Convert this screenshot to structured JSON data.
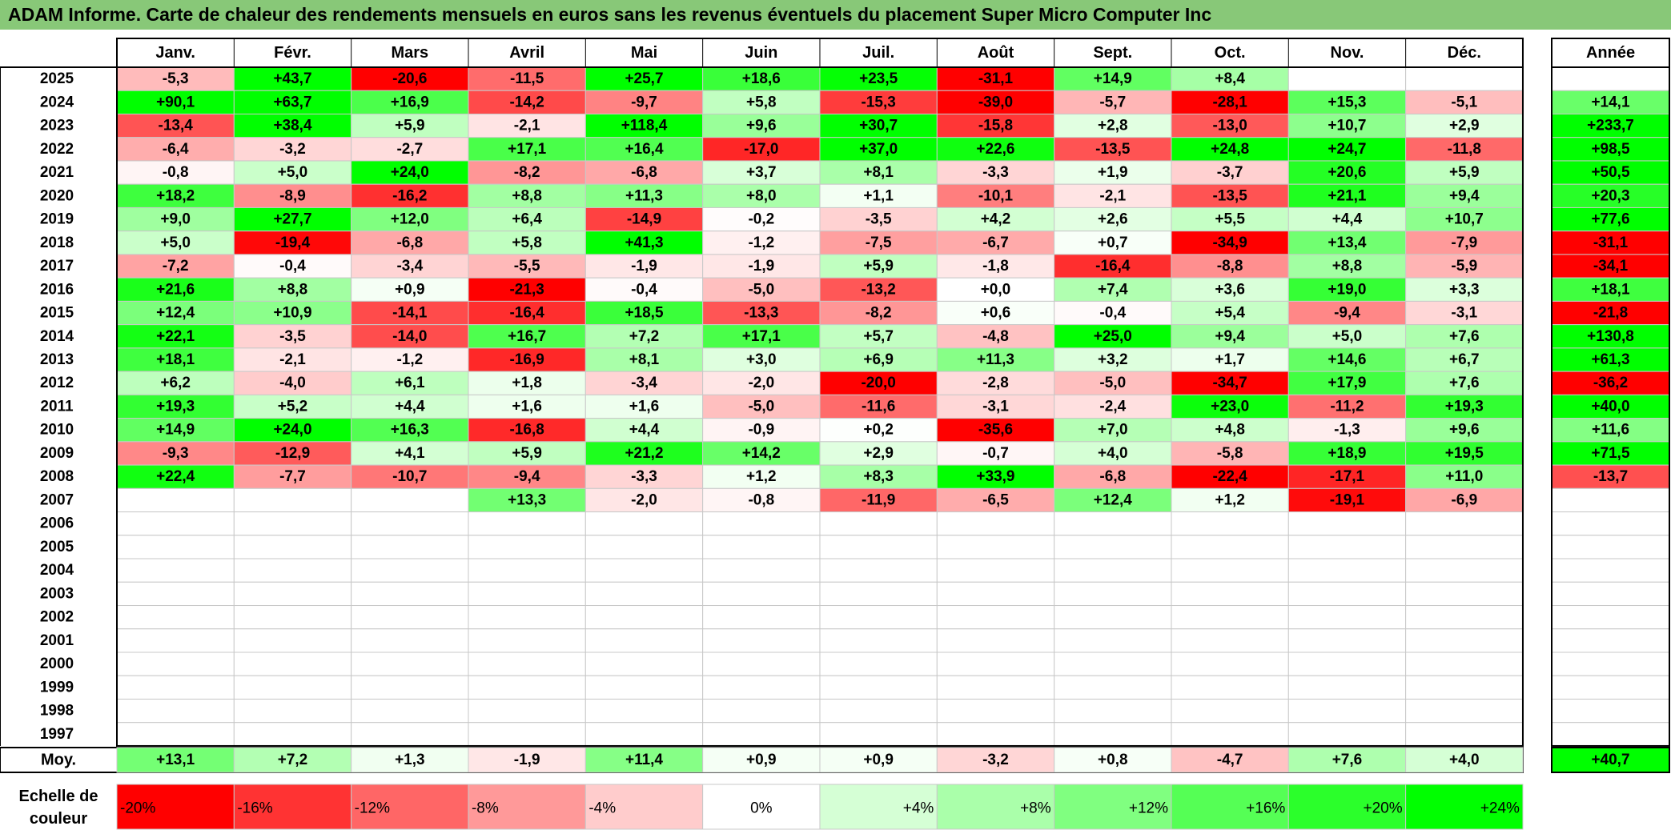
{
  "title": "ADAM Informe. Carte de chaleur des rendements mensuels en euros sans les revenus éventuels du placement Super Micro Computer Inc",
  "chart_data": {
    "type": "heatmap",
    "title": "ADAM Informe. Carte de chaleur des rendements mensuels en euros sans les revenus éventuels du placement Super Micro Computer Inc",
    "months": [
      "Janv.",
      "Févr.",
      "Mars",
      "Avril",
      "Mai",
      "Juin",
      "Juil.",
      "Août",
      "Sept.",
      "Oct.",
      "Nov.",
      "Déc."
    ],
    "year_column_label": "Année",
    "years": [
      "2025",
      "2024",
      "2023",
      "2022",
      "2021",
      "2020",
      "2019",
      "2018",
      "2017",
      "2016",
      "2015",
      "2014",
      "2013",
      "2012",
      "2011",
      "2010",
      "2009",
      "2008",
      "2007",
      "2006",
      "2005",
      "2004",
      "2003",
      "2002",
      "2001",
      "2000",
      "1999",
      "1998",
      "1997"
    ],
    "values": [
      [
        "-5,3",
        "+43,7",
        "-20,6",
        "-11,5",
        "+25,7",
        "+18,6",
        "+23,5",
        "-31,1",
        "+14,9",
        "+8,4",
        "",
        ""
      ],
      [
        "+90,1",
        "+63,7",
        "+16,9",
        "-14,2",
        "-9,7",
        "+5,8",
        "-15,3",
        "-39,0",
        "-5,7",
        "-28,1",
        "+15,3",
        "-5,1"
      ],
      [
        "-13,4",
        "+38,4",
        "+5,9",
        "-2,1",
        "+118,4",
        "+9,6",
        "+30,7",
        "-15,8",
        "+2,8",
        "-13,0",
        "+10,7",
        "+2,9"
      ],
      [
        "-6,4",
        "-3,2",
        "-2,7",
        "+17,1",
        "+16,4",
        "-17,0",
        "+37,0",
        "+22,6",
        "-13,5",
        "+24,8",
        "+24,7",
        "-11,8"
      ],
      [
        "-0,8",
        "+5,0",
        "+24,0",
        "-8,2",
        "-6,8",
        "+3,7",
        "+8,1",
        "-3,3",
        "+1,9",
        "-3,7",
        "+20,6",
        "+5,9"
      ],
      [
        "+18,2",
        "-8,9",
        "-16,2",
        "+8,8",
        "+11,3",
        "+8,0",
        "+1,1",
        "-10,1",
        "-2,1",
        "-13,5",
        "+21,1",
        "+9,4"
      ],
      [
        "+9,0",
        "+27,7",
        "+12,0",
        "+6,4",
        "-14,9",
        "-0,2",
        "-3,5",
        "+4,2",
        "+2,6",
        "+5,5",
        "+4,4",
        "+10,7"
      ],
      [
        "+5,0",
        "-19,4",
        "-6,8",
        "+5,8",
        "+41,3",
        "-1,2",
        "-7,5",
        "-6,7",
        "+0,7",
        "-34,9",
        "+13,4",
        "-7,9"
      ],
      [
        "-7,2",
        "-0,4",
        "-3,4",
        "-5,5",
        "-1,9",
        "-1,9",
        "+5,9",
        "-1,8",
        "-16,4",
        "-8,8",
        "+8,8",
        "-5,9"
      ],
      [
        "+21,6",
        "+8,8",
        "+0,9",
        "-21,3",
        "-0,4",
        "-5,0",
        "-13,2",
        "+0,0",
        "+7,4",
        "+3,6",
        "+19,0",
        "+3,3"
      ],
      [
        "+12,4",
        "+10,9",
        "-14,1",
        "-16,4",
        "+18,5",
        "-13,3",
        "-8,2",
        "+0,6",
        "-0,4",
        "+5,4",
        "-9,4",
        "-3,1"
      ],
      [
        "+22,1",
        "-3,5",
        "-14,0",
        "+16,7",
        "+7,2",
        "+17,1",
        "+5,7",
        "-4,8",
        "+25,0",
        "+9,4",
        "+5,0",
        "+7,6"
      ],
      [
        "+18,1",
        "-2,1",
        "-1,2",
        "-16,9",
        "+8,1",
        "+3,0",
        "+6,9",
        "+11,3",
        "+3,2",
        "+1,7",
        "+14,6",
        "+6,7"
      ],
      [
        "+6,2",
        "-4,0",
        "+6,1",
        "+1,8",
        "-3,4",
        "-2,0",
        "-20,0",
        "-2,8",
        "-5,0",
        "-34,7",
        "+17,9",
        "+7,6"
      ],
      [
        "+19,3",
        "+5,2",
        "+4,4",
        "+1,6",
        "+1,6",
        "-5,0",
        "-11,6",
        "-3,1",
        "-2,4",
        "+23,0",
        "-11,2",
        "+19,3"
      ],
      [
        "+14,9",
        "+24,0",
        "+16,3",
        "-16,8",
        "+4,4",
        "-0,9",
        "+0,2",
        "-35,6",
        "+7,0",
        "+4,8",
        "-1,3",
        "+9,6"
      ],
      [
        "-9,3",
        "-12,9",
        "+4,1",
        "+5,9",
        "+21,2",
        "+14,2",
        "+2,9",
        "-0,7",
        "+4,0",
        "-5,8",
        "+18,9",
        "+19,5"
      ],
      [
        "+22,4",
        "-7,7",
        "-10,7",
        "-9,4",
        "-3,3",
        "+1,2",
        "+8,3",
        "+33,9",
        "-6,8",
        "-22,4",
        "-17,1",
        "+11,0"
      ],
      [
        "",
        "",
        "",
        "+13,3",
        "-2,0",
        "-0,8",
        "-11,9",
        "-6,5",
        "+12,4",
        "+1,2",
        "-19,1",
        "-6,9"
      ],
      [
        "",
        "",
        "",
        "",
        "",
        "",
        "",
        "",
        "",
        "",
        "",
        ""
      ],
      [
        "",
        "",
        "",
        "",
        "",
        "",
        "",
        "",
        "",
        "",
        "",
        ""
      ],
      [
        "",
        "",
        "",
        "",
        "",
        "",
        "",
        "",
        "",
        "",
        "",
        ""
      ],
      [
        "",
        "",
        "",
        "",
        "",
        "",
        "",
        "",
        "",
        "",
        "",
        ""
      ],
      [
        "",
        "",
        "",
        "",
        "",
        "",
        "",
        "",
        "",
        "",
        "",
        ""
      ],
      [
        "",
        "",
        "",
        "",
        "",
        "",
        "",
        "",
        "",
        "",
        "",
        ""
      ],
      [
        "",
        "",
        "",
        "",
        "",
        "",
        "",
        "",
        "",
        "",
        "",
        ""
      ],
      [
        "",
        "",
        "",
        "",
        "",
        "",
        "",
        "",
        "",
        "",
        "",
        ""
      ],
      [
        "",
        "",
        "",
        "",
        "",
        "",
        "",
        "",
        "",
        "",
        "",
        ""
      ],
      [
        "",
        "",
        "",
        "",
        "",
        "",
        "",
        "",
        "",
        "",
        "",
        ""
      ]
    ],
    "annual": [
      "",
      "+14,1",
      "+233,7",
      "+98,5",
      "+50,5",
      "+20,3",
      "+77,6",
      "-31,1",
      "-34,1",
      "+18,1",
      "-21,8",
      "+130,8",
      "+61,3",
      "-36,2",
      "+40,0",
      "+11,6",
      "+71,5",
      "-13,7",
      "",
      "",
      "",
      "",
      "",
      "",
      "",
      "",
      "",
      "",
      ""
    ],
    "average_label": "Moy.",
    "averages": [
      "+13,1",
      "+7,2",
      "+1,3",
      "-1,9",
      "+11,4",
      "+0,9",
      "+0,9",
      "-3,2",
      "+0,8",
      "-4,7",
      "+7,6",
      "+4,0"
    ],
    "average_annual": "+40,7",
    "scale_label": [
      "Echelle de",
      "couleur"
    ],
    "scale_steps": [
      "-20%",
      "-16%",
      "-12%",
      "-8%",
      "-4%",
      "0%",
      "+4%",
      "+8%",
      "+12%",
      "+16%",
      "+20%",
      "+24%"
    ],
    "scale_values": [
      -20,
      -16,
      -12,
      -8,
      -4,
      0,
      4,
      8,
      12,
      16,
      20,
      24
    ],
    "colors": {
      "negative_max": "#ff0000",
      "neutral": "#ffffff",
      "positive_max": "#00ff00",
      "title_bar": "#88c878"
    }
  }
}
